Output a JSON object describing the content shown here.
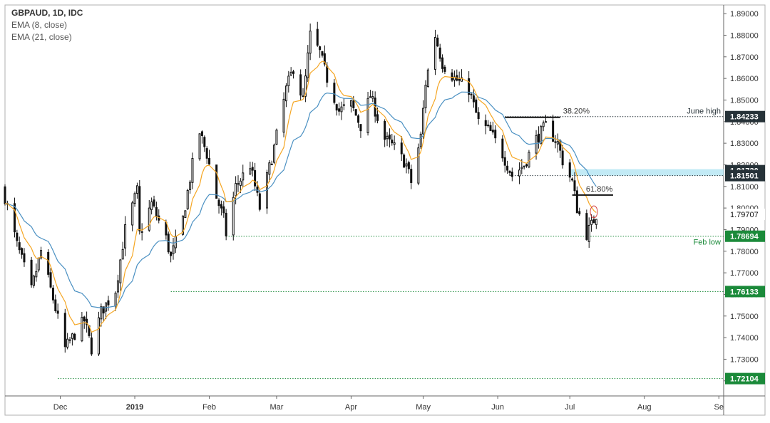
{
  "chart_data": {
    "type": "candlestick",
    "symbol": "GBPAUD, 1D, IDC",
    "indicators": [
      "EMA (8, close)",
      "EMA (21, close)"
    ],
    "ylim": [
      1.713,
      1.894
    ],
    "y_ticks": [
      "1.89000",
      "1.88000",
      "1.87000",
      "1.86000",
      "1.85000",
      "1.84000",
      "1.83000",
      "1.82000",
      "1.81000",
      "1.80000",
      "1.79000",
      "1.78000",
      "1.77000",
      "1.76000",
      "1.75000",
      "1.74000",
      "1.73000",
      "1.72000"
    ],
    "x_ticks": [
      {
        "label": "Dec",
        "date": "2018-12-01"
      },
      {
        "label": "2019",
        "date": "2019-01-01"
      },
      {
        "label": "Feb",
        "date": "2019-02-01"
      },
      {
        "label": "Mar",
        "date": "2019-03-01"
      },
      {
        "label": "Apr",
        "date": "2019-04-01"
      },
      {
        "label": "May",
        "date": "2019-05-01"
      },
      {
        "label": "Jun",
        "date": "2019-06-01"
      },
      {
        "label": "Jul",
        "date": "2019-07-01"
      },
      {
        "label": "Aug",
        "date": "2019-08-01"
      },
      {
        "label": "Se",
        "date": "2019-09-01"
      }
    ],
    "x_range": [
      "2018-11-08",
      "2019-09-03"
    ],
    "anchors": [
      {
        "date": "2018-11-08",
        "close": 1.805
      },
      {
        "date": "2018-11-13",
        "close": 1.783
      },
      {
        "date": "2018-11-19",
        "close": 1.762
      },
      {
        "date": "2018-11-23",
        "close": 1.78
      },
      {
        "date": "2018-11-28",
        "close": 1.758
      },
      {
        "date": "2018-12-03",
        "close": 1.735
      },
      {
        "date": "2018-12-06",
        "close": 1.74
      },
      {
        "date": "2018-12-11",
        "close": 1.748
      },
      {
        "date": "2018-12-14",
        "close": 1.735
      },
      {
        "date": "2018-12-18",
        "close": 1.752
      },
      {
        "date": "2018-12-24",
        "close": 1.762
      },
      {
        "date": "2018-12-28",
        "close": 1.79
      },
      {
        "date": "2019-01-02",
        "close": 1.808
      },
      {
        "date": "2019-01-03",
        "close": 1.788
      },
      {
        "date": "2019-01-08",
        "close": 1.802
      },
      {
        "date": "2019-01-14",
        "close": 1.786
      },
      {
        "date": "2019-01-16",
        "close": 1.777
      },
      {
        "date": "2019-01-21",
        "close": 1.795
      },
      {
        "date": "2019-01-25",
        "close": 1.82
      },
      {
        "date": "2019-01-28",
        "close": 1.835
      },
      {
        "date": "2019-01-31",
        "close": 1.825
      },
      {
        "date": "2019-02-04",
        "close": 1.805
      },
      {
        "date": "2019-02-07",
        "close": 1.795
      },
      {
        "date": "2019-02-08",
        "close": 1.788
      },
      {
        "date": "2019-02-12",
        "close": 1.81
      },
      {
        "date": "2019-02-18",
        "close": 1.82
      },
      {
        "date": "2019-02-22",
        "close": 1.8
      },
      {
        "date": "2019-02-28",
        "close": 1.828
      },
      {
        "date": "2019-03-05",
        "close": 1.855
      },
      {
        "date": "2019-03-08",
        "close": 1.865
      },
      {
        "date": "2019-03-12",
        "close": 1.85
      },
      {
        "date": "2019-03-15",
        "close": 1.88
      },
      {
        "date": "2019-03-19",
        "close": 1.872
      },
      {
        "date": "2019-03-22",
        "close": 1.86
      },
      {
        "date": "2019-03-27",
        "close": 1.845
      },
      {
        "date": "2019-04-01",
        "close": 1.848
      },
      {
        "date": "2019-04-05",
        "close": 1.838
      },
      {
        "date": "2019-04-09",
        "close": 1.852
      },
      {
        "date": "2019-04-15",
        "close": 1.832
      },
      {
        "date": "2019-04-19",
        "close": 1.828
      },
      {
        "date": "2019-04-24",
        "close": 1.82
      },
      {
        "date": "2019-04-26",
        "close": 1.812
      },
      {
        "date": "2019-04-30",
        "close": 1.833
      },
      {
        "date": "2019-05-02",
        "close": 1.858
      },
      {
        "date": "2019-05-06",
        "close": 1.88
      },
      {
        "date": "2019-05-09",
        "close": 1.867
      },
      {
        "date": "2019-05-14",
        "close": 1.86
      },
      {
        "date": "2019-05-20",
        "close": 1.855
      },
      {
        "date": "2019-05-24",
        "close": 1.84
      },
      {
        "date": "2019-05-29",
        "close": 1.835
      },
      {
        "date": "2019-06-03",
        "close": 1.825
      },
      {
        "date": "2019-06-07",
        "close": 1.815
      },
      {
        "date": "2019-06-12",
        "close": 1.82
      },
      {
        "date": "2019-06-17",
        "close": 1.832
      },
      {
        "date": "2019-06-21",
        "close": 1.838
      },
      {
        "date": "2019-06-26",
        "close": 1.83
      },
      {
        "date": "2019-06-28",
        "close": 1.822
      },
      {
        "date": "2019-07-02",
        "close": 1.812
      },
      {
        "date": "2019-07-04",
        "close": 1.8
      },
      {
        "date": "2019-07-08",
        "close": 1.788
      },
      {
        "date": "2019-07-10",
        "close": 1.792
      },
      {
        "date": "2019-07-12",
        "close": 1.797
      }
    ],
    "levels": [
      {
        "price": 1.84233,
        "label": "1.84233",
        "tag_bg": "#263238",
        "annotation": "June high",
        "start": "2019-06-04",
        "color": "#263238"
      },
      {
        "price": 1.81501,
        "label": "1.81501",
        "tag_bg": "#263238",
        "annotation": "",
        "start": "2019-06-06",
        "color": "#263238"
      },
      {
        "price": 1.78694,
        "label": "1.78694",
        "tag_bg": "#1b8a3a",
        "annotation": "Feb low",
        "start": "2019-02-08",
        "color": "#1b8a3a"
      },
      {
        "price": 1.76133,
        "label": "1.76133",
        "tag_bg": "#1b8a3a",
        "annotation": "",
        "start": "2019-01-16",
        "color": "#1b8a3a"
      },
      {
        "price": 1.72104,
        "label": "1.72104",
        "tag_bg": "#1b8a3a",
        "annotation": "",
        "start": "2018-11-30",
        "color": "#1b8a3a"
      }
    ],
    "current_price": "1.79707",
    "hidden_tag": "1.81730",
    "fib_levels": [
      {
        "label": "38.20%",
        "price": 1.842,
        "start": "2019-06-04",
        "end": "2019-06-27"
      },
      {
        "label": "61.80%",
        "price": 1.806,
        "start": "2019-07-02",
        "end": "2019-07-19"
      }
    ],
    "zone": {
      "start": "2019-07-01",
      "end": "2019-09-05",
      "top": 1.818,
      "bottom": 1.815
    },
    "ellipse": {
      "date": "2019-07-11",
      "top": 1.801,
      "bottom": 1.7955
    },
    "colors": {
      "candle": "#111111",
      "ema8": "#f5a623",
      "ema21": "#4a90c2",
      "zone": "#b3e5f2",
      "green": "#1b8a3a",
      "dark": "#263238",
      "ellipse": "#d23b3b"
    }
  }
}
